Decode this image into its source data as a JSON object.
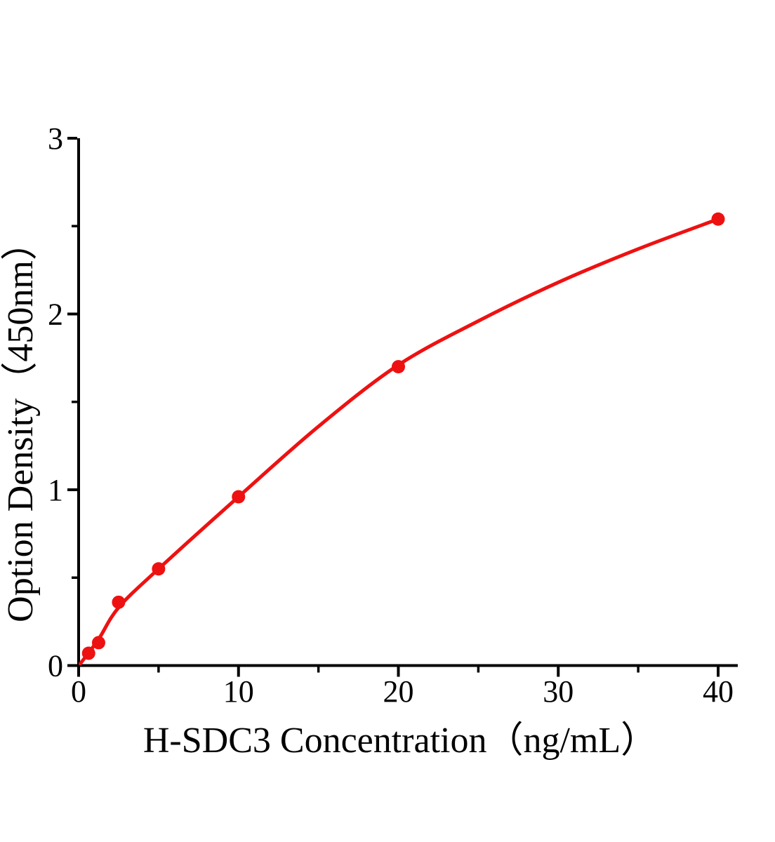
{
  "figure": {
    "background": "#ffffff"
  },
  "chart_data": {
    "type": "scatter",
    "title": "",
    "xlabel": "H-SDC3 Concentration（ng/mL）",
    "ylabel": "Option Density（450nm）",
    "xlim": [
      0,
      41.3
    ],
    "ylim": [
      0,
      3
    ],
    "x_major_ticks": [
      0,
      10,
      20,
      30,
      40
    ],
    "x_minor_ticks": [
      5,
      15,
      25,
      35
    ],
    "y_major_ticks": [
      0,
      1,
      2,
      3
    ],
    "y_minor_ticks": [
      0.5,
      1.5,
      2.5
    ],
    "grid": false,
    "legend": null,
    "axis_color": "#000000",
    "accent_color": "#ee1111",
    "series": [
      {
        "name": "standard-data-points",
        "type": "scatter",
        "color": "#ee1111",
        "x": [
          0.625,
          1.25,
          2.5,
          5,
          10,
          20,
          40
        ],
        "y": [
          0.07,
          0.13,
          0.36,
          0.55,
          0.96,
          1.7,
          2.54
        ]
      },
      {
        "name": "fitted-curve",
        "type": "line",
        "color": "#ee1111",
        "x": [
          0.1,
          1.25,
          2.5,
          5,
          10,
          15,
          20,
          25,
          30,
          35,
          40
        ],
        "y": [
          0.01,
          0.15,
          0.33,
          0.55,
          0.96,
          1.36,
          1.71,
          1.96,
          2.18,
          2.37,
          2.54
        ]
      }
    ]
  }
}
